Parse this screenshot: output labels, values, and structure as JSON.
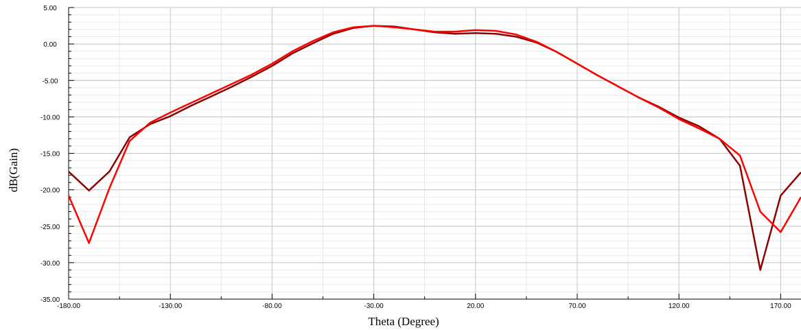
{
  "chart_data": {
    "type": "line",
    "xlabel": "Theta (Degree)",
    "ylabel": "dB(Gain)",
    "xlim": [
      -180,
      180
    ],
    "ylim": [
      -35,
      5
    ],
    "x_ticks": [
      -180,
      -130,
      -80,
      -30,
      20,
      70,
      120,
      170
    ],
    "x_tick_labels": [
      "-180.00",
      "-130.00",
      "-80.00",
      "-30.00",
      "20.00",
      "70.00",
      "120.00",
      "170.00"
    ],
    "y_ticks": [
      5,
      0,
      -5,
      -10,
      -15,
      -20,
      -25,
      -30,
      -35
    ],
    "y_tick_labels": [
      "5.00",
      "0.00",
      "-5.00",
      "-10.00",
      "-15.00",
      "-20.00",
      "-25.00",
      "-30.00",
      "-35.00"
    ],
    "grid": true,
    "x": [
      -180,
      -170,
      -160,
      -150,
      -140,
      -130,
      -120,
      -110,
      -100,
      -90,
      -80,
      -70,
      -60,
      -50,
      -40,
      -30,
      -20,
      -10,
      0,
      10,
      20,
      30,
      40,
      50,
      60,
      70,
      80,
      90,
      100,
      110,
      120,
      130,
      140,
      150,
      160,
      170,
      180
    ],
    "series": [
      {
        "color": "#8b0000",
        "values": [
          -17.5,
          -20.1,
          -17.5,
          -12.8,
          -11.0,
          -9.9,
          -8.5,
          -7.2,
          -5.9,
          -4.5,
          -3.0,
          -1.3,
          0.1,
          1.4,
          2.2,
          2.5,
          2.4,
          2.0,
          1.6,
          1.4,
          1.5,
          1.4,
          1.0,
          0.2,
          -1.1,
          -2.7,
          -4.3,
          -5.8,
          -7.3,
          -8.6,
          -10.1,
          -11.3,
          -13.0,
          -16.7,
          -31.0,
          -20.8,
          -17.6
        ]
      },
      {
        "color": "#ff0000",
        "values": [
          -20.8,
          -27.3,
          -19.8,
          -13.3,
          -10.8,
          -9.4,
          -8.1,
          -6.8,
          -5.5,
          -4.2,
          -2.7,
          -1.0,
          0.4,
          1.6,
          2.3,
          2.5,
          2.3,
          2.0,
          1.7,
          1.7,
          1.9,
          1.8,
          1.3,
          0.3,
          -1.1,
          -2.7,
          -4.3,
          -5.8,
          -7.3,
          -8.7,
          -10.3,
          -11.6,
          -13.0,
          -15.3,
          -23.0,
          -25.8,
          -21.0
        ]
      }
    ]
  }
}
